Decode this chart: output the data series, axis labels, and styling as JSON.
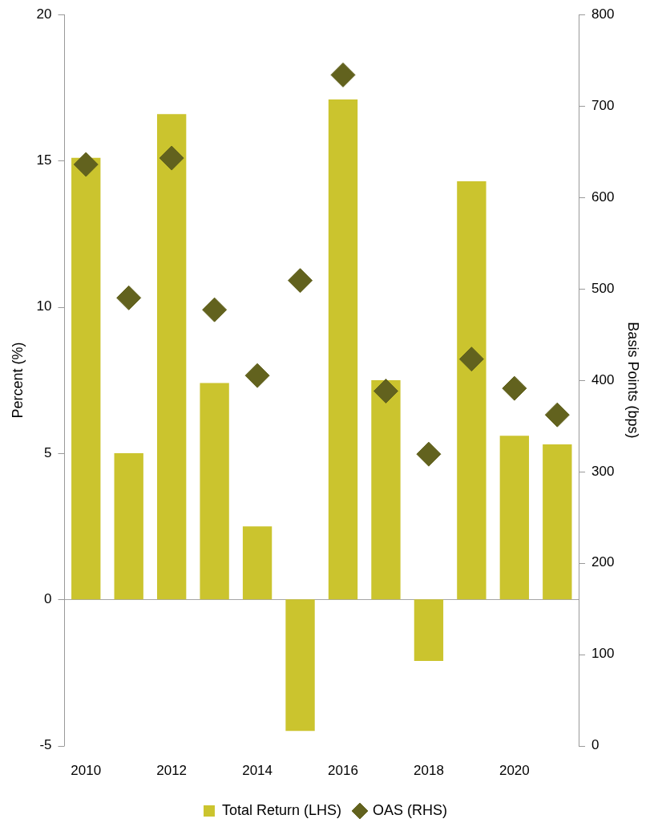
{
  "chart_data": {
    "type": "bar",
    "ylabel": "Percent (%)",
    "y2label": "Basis Points (bps)",
    "categories": [
      "2010",
      null,
      "2012",
      null,
      "2014",
      null,
      "2016",
      null,
      "2018",
      null,
      "2020",
      null
    ],
    "series": [
      {
        "name": "Total Return (LHS)",
        "color": "#cbc42e",
        "values": [
          15.1,
          5.0,
          16.6,
          7.4,
          2.5,
          -4.5,
          17.1,
          7.5,
          -2.1,
          14.3,
          5.6,
          5.3
        ]
      },
      {
        "name": "OAS (RHS)",
        "type": "scatter",
        "axis": "y2",
        "marker": "diamond",
        "color": "#62621e",
        "values": [
          636,
          490,
          643,
          477,
          405,
          509,
          734,
          388,
          319,
          423,
          391,
          362
        ]
      }
    ],
    "ylim": [
      -5,
      20
    ],
    "yticks": [
      -5,
      0,
      5,
      10,
      15,
      20
    ],
    "y2lim": [
      0,
      800
    ],
    "y2ticks": [
      0,
      100,
      200,
      300,
      400,
      500,
      600,
      700,
      800
    ],
    "ref_lines": [
      {
        "axis": "y",
        "value": 0,
        "color": "#a6a6a6"
      }
    ],
    "grid": false,
    "legend": "bottom"
  }
}
